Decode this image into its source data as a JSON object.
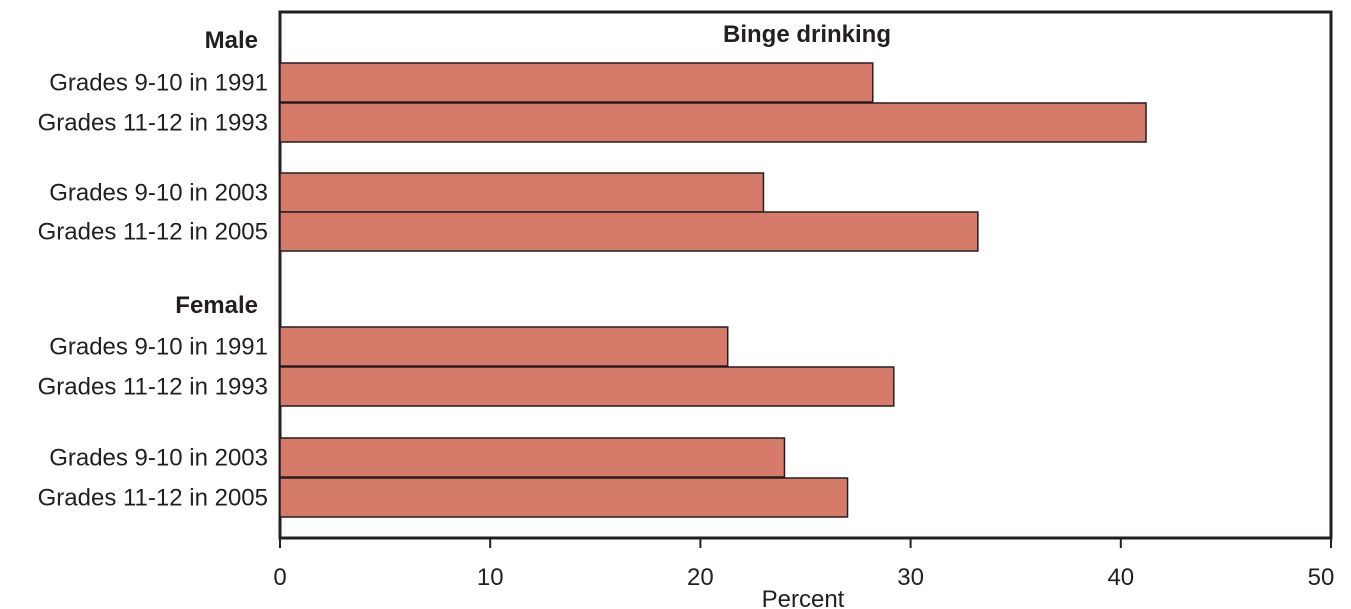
{
  "chart_data": {
    "type": "bar",
    "orientation": "horizontal",
    "title": "Binge drinking",
    "xlabel": "Percent",
    "ylabel": "",
    "xlim": [
      0,
      50
    ],
    "ticks": [
      0,
      10,
      20,
      30,
      40,
      50
    ],
    "bar_color": "#d67b69",
    "groups": [
      {
        "name": "Male",
        "bars": [
          {
            "label": "Grades 9-10 in 1991",
            "value": 28.2
          },
          {
            "label": "Grades 11-12 in 1993",
            "value": 41.2
          },
          {
            "label": "Grades 9-10 in 2003",
            "value": 23.0
          },
          {
            "label": "Grades 11-12 in 2005",
            "value": 33.2
          }
        ]
      },
      {
        "name": "Female",
        "bars": [
          {
            "label": "Grades 9-10 in 1991",
            "value": 21.3
          },
          {
            "label": "Grades 11-12 in 1993",
            "value": 29.2
          },
          {
            "label": "Grades 9-10 in 2003",
            "value": 24.0
          },
          {
            "label": "Grades 11-12 in 2005",
            "value": 27.0
          }
        ]
      }
    ],
    "grid": false,
    "legend": "none"
  }
}
